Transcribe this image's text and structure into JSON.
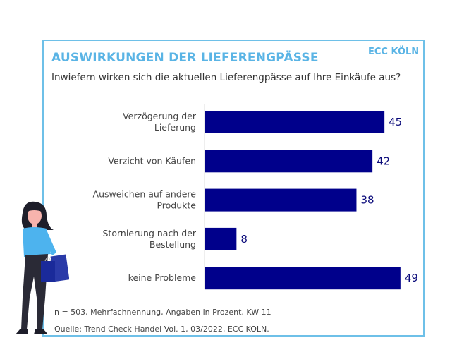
{
  "header": {
    "title": "AUSWIRKUNGEN DER LIEFERENGPÄSSE",
    "brand": "ECC KÖLN"
  },
  "chart_data": {
    "type": "bar",
    "orientation": "horizontal",
    "title": "AUSWIRKUNGEN DER LIEFERENGPÄSSE",
    "subtitle": "Inwiefern wirken sich die aktuellen Lieferengpässe auf Ihre Einkäufe aus?",
    "categories": [
      [
        "Verzögerung der",
        "Lieferung"
      ],
      [
        "Verzicht von Käufen"
      ],
      [
        "Ausweichen auf andere",
        "Produkte"
      ],
      [
        "Stornierung nach der",
        "Bestellung"
      ],
      [
        "keine Probleme"
      ]
    ],
    "values": [
      45,
      42,
      38,
      8,
      49
    ],
    "xlim": [
      0,
      50
    ],
    "grid": false,
    "bar_color": "#00008b",
    "label_color": "#0a0a7a"
  },
  "footer": {
    "note": "n = 503, Mehrfachnennung, Angaben in Prozent, KW 11",
    "source": "Quelle: Trend Check Handel Vol. 1, 03/2022, ECC KÖLN."
  },
  "colors": {
    "accent": "#5ab4e5",
    "border": "#6ec0e8"
  }
}
